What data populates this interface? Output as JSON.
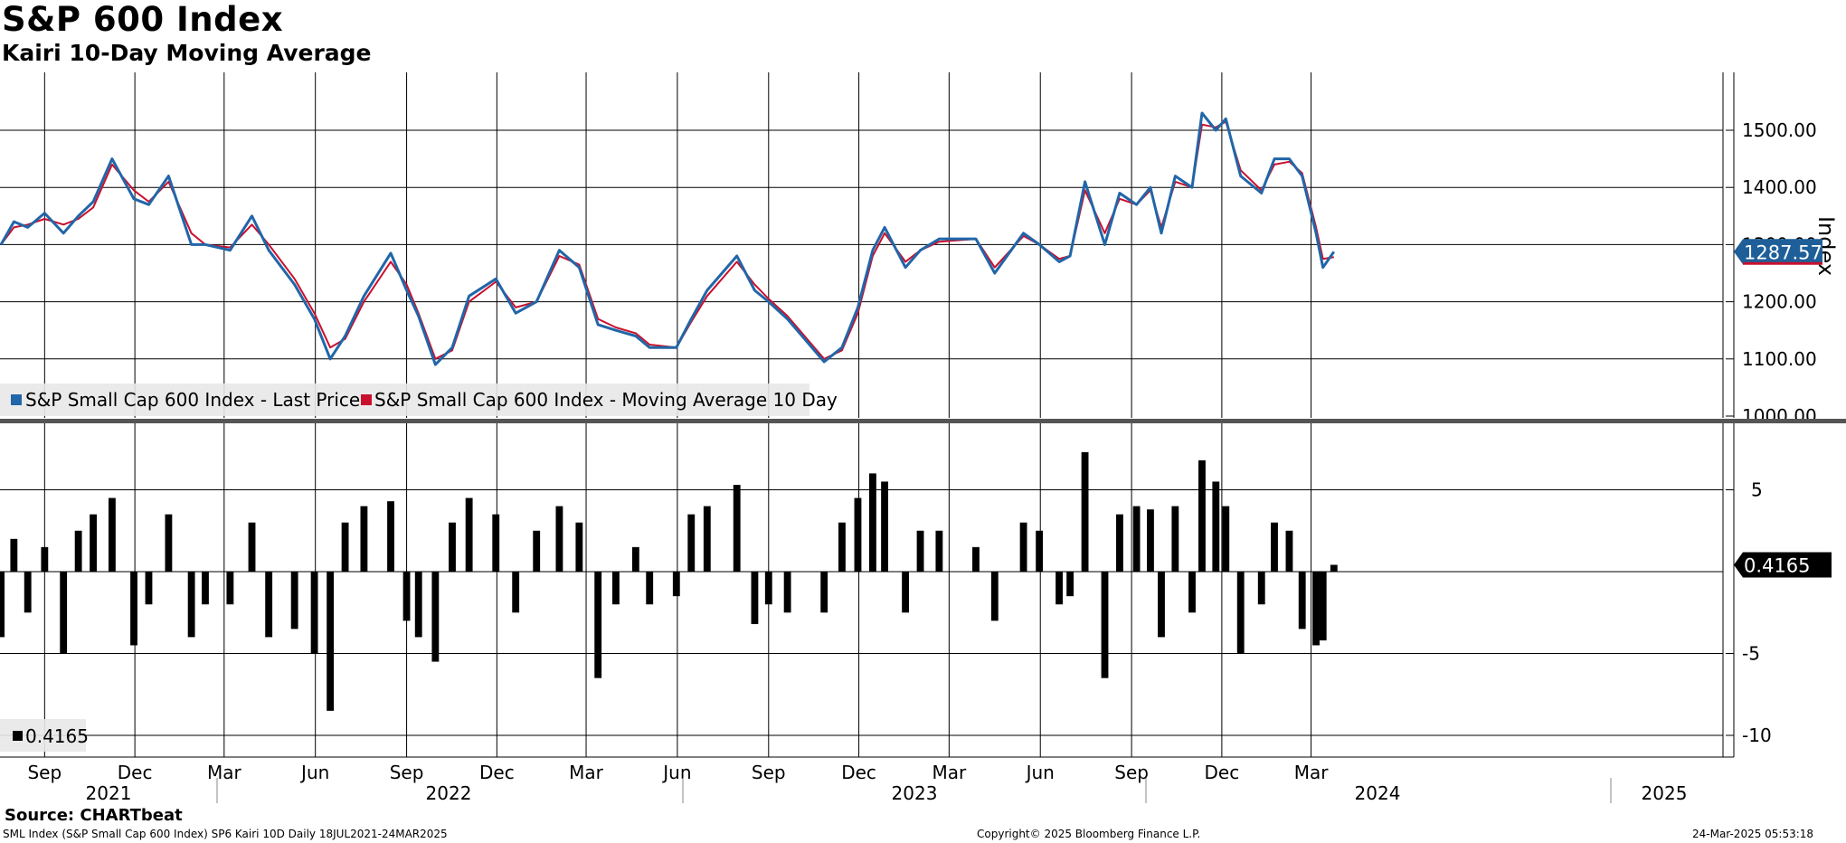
{
  "title": "S&P 600 Index",
  "subtitle": "Kairi 10-Day Moving Average",
  "source": "Source: CHARTbeat",
  "footer": {
    "left": "SML Index (S&P Small Cap 600 Index) SP6 Kairi 10D  Daily 18JUL2021-24MAR2025",
    "center": "Copyright© 2025 Bloomberg Finance L.P.",
    "right": "24-Mar-2025 05:53:18"
  },
  "colors": {
    "price": "#2166a8",
    "moving_average": "#c8102e",
    "kairi_bars": "#000000",
    "grid": "#000000",
    "label_bg": "#1f5f99"
  },
  "chart_data": [
    {
      "type": "line",
      "panel": "top",
      "ylabel": "Index",
      "ylim": [
        1000,
        1580
      ],
      "yticks": [
        "1000.00",
        "1100.00",
        "1200.00",
        "1300.00",
        "1400.00",
        "1500.00"
      ],
      "last_value_label": "1287.57",
      "legend": [
        "S&P Small Cap 600 Index - Last Price",
        "S&P Small Cap 600 Index - Moving Average 10 Day"
      ],
      "legend_position": "bottom-left",
      "x_month_ticks": [
        "Sep",
        "Dec",
        "Mar",
        "Jun",
        "Sep",
        "Dec",
        "Mar",
        "Jun",
        "Sep",
        "Dec",
        "Mar",
        "Jun",
        "Sep",
        "Dec",
        "Mar"
      ],
      "x_year_ticks": [
        "2021",
        "2022",
        "2023",
        "2024",
        "2025"
      ],
      "series": [
        {
          "name": "S&P Small Cap 600 Index - Last Price",
          "x": [
            "2021-07-19",
            "2021-08-01",
            "2021-08-15",
            "2021-09-01",
            "2021-09-20",
            "2021-10-05",
            "2021-10-20",
            "2021-11-08",
            "2021-11-30",
            "2021-12-15",
            "2022-01-04",
            "2022-01-27",
            "2022-02-10",
            "2022-03-07",
            "2022-03-29",
            "2022-04-15",
            "2022-05-11",
            "2022-05-31",
            "2022-06-16",
            "2022-07-01",
            "2022-07-20",
            "2022-08-16",
            "2022-09-01",
            "2022-09-13",
            "2022-09-30",
            "2022-10-17",
            "2022-11-03",
            "2022-11-30",
            "2022-12-20",
            "2023-01-10",
            "2023-02-02",
            "2023-02-22",
            "2023-03-13",
            "2023-03-31",
            "2023-04-20",
            "2023-05-04",
            "2023-05-31",
            "2023-06-15",
            "2023-07-01",
            "2023-07-31",
            "2023-08-18",
            "2023-09-01",
            "2023-09-20",
            "2023-10-27",
            "2023-11-14",
            "2023-11-30",
            "2023-12-15",
            "2023-12-27",
            "2024-01-17",
            "2024-02-01",
            "2024-02-20",
            "2024-03-28",
            "2024-04-16",
            "2024-05-15",
            "2024-05-31",
            "2024-06-20",
            "2024-07-01",
            "2024-07-16",
            "2024-08-05",
            "2024-08-20",
            "2024-09-06",
            "2024-09-20",
            "2024-10-01",
            "2024-10-15",
            "2024-11-01",
            "2024-11-11",
            "2024-11-25",
            "2024-12-05",
            "2024-12-20",
            "2025-01-10",
            "2025-01-23",
            "2025-02-07",
            "2025-02-20",
            "2025-03-06",
            "2025-03-13",
            "2025-03-24"
          ],
          "values": [
            1300,
            1340,
            1330,
            1355,
            1320,
            1350,
            1375,
            1450,
            1380,
            1370,
            1420,
            1300,
            1300,
            1290,
            1350,
            1290,
            1230,
            1170,
            1100,
            1140,
            1210,
            1285,
            1220,
            1175,
            1090,
            1120,
            1210,
            1240,
            1180,
            1200,
            1290,
            1260,
            1160,
            1150,
            1140,
            1120,
            1120,
            1170,
            1220,
            1280,
            1220,
            1200,
            1170,
            1095,
            1120,
            1190,
            1290,
            1330,
            1260,
            1290,
            1310,
            1310,
            1250,
            1320,
            1300,
            1270,
            1280,
            1410,
            1300,
            1390,
            1370,
            1400,
            1320,
            1420,
            1400,
            1530,
            1500,
            1520,
            1420,
            1390,
            1450,
            1450,
            1420,
            1320,
            1260,
            1287.57
          ]
        },
        {
          "name": "S&P Small Cap 600 Index - Moving Average 10 Day",
          "x": [
            "2021-07-19",
            "2021-08-01",
            "2021-08-15",
            "2021-09-01",
            "2021-09-20",
            "2021-10-05",
            "2021-10-20",
            "2021-11-08",
            "2021-11-30",
            "2021-12-15",
            "2022-01-04",
            "2022-01-27",
            "2022-02-10",
            "2022-03-07",
            "2022-03-29",
            "2022-04-15",
            "2022-05-11",
            "2022-05-31",
            "2022-06-16",
            "2022-07-01",
            "2022-07-20",
            "2022-08-16",
            "2022-09-01",
            "2022-09-13",
            "2022-09-30",
            "2022-10-17",
            "2022-11-03",
            "2022-11-30",
            "2022-12-20",
            "2023-01-10",
            "2023-02-02",
            "2023-02-22",
            "2023-03-13",
            "2023-03-31",
            "2023-04-20",
            "2023-05-04",
            "2023-05-31",
            "2023-06-15",
            "2023-07-01",
            "2023-07-31",
            "2023-08-18",
            "2023-09-01",
            "2023-09-20",
            "2023-10-27",
            "2023-11-14",
            "2023-11-30",
            "2023-12-15",
            "2023-12-27",
            "2024-01-17",
            "2024-02-01",
            "2024-02-20",
            "2024-03-28",
            "2024-04-16",
            "2024-05-15",
            "2024-05-31",
            "2024-06-20",
            "2024-07-01",
            "2024-07-16",
            "2024-08-05",
            "2024-08-20",
            "2024-09-06",
            "2024-09-20",
            "2024-10-01",
            "2024-10-15",
            "2024-11-01",
            "2024-11-11",
            "2024-11-25",
            "2024-12-05",
            "2024-12-20",
            "2025-01-10",
            "2025-01-23",
            "2025-02-07",
            "2025-02-20",
            "2025-03-06",
            "2025-03-13",
            "2025-03-24"
          ],
          "values": [
            1300,
            1330,
            1335,
            1345,
            1335,
            1345,
            1365,
            1440,
            1395,
            1375,
            1410,
            1320,
            1300,
            1295,
            1335,
            1300,
            1240,
            1180,
            1120,
            1135,
            1200,
            1270,
            1230,
            1180,
            1100,
            1115,
            1200,
            1235,
            1190,
            1200,
            1280,
            1265,
            1170,
            1155,
            1145,
            1125,
            1120,
            1165,
            1210,
            1270,
            1230,
            1205,
            1175,
            1100,
            1115,
            1180,
            1280,
            1320,
            1270,
            1290,
            1305,
            1310,
            1260,
            1315,
            1300,
            1275,
            1280,
            1395,
            1320,
            1380,
            1370,
            1395,
            1330,
            1410,
            1400,
            1510,
            1505,
            1515,
            1430,
            1395,
            1440,
            1445,
            1425,
            1330,
            1275,
            1278
          ]
        }
      ]
    },
    {
      "type": "bar",
      "panel": "bottom",
      "ylim": [
        -11,
        9
      ],
      "yticks": [
        "-10",
        "-5",
        "5"
      ],
      "last_value_label": "0.4165",
      "legend": [
        "0.4165"
      ],
      "legend_position": "bottom-left",
      "series": [
        {
          "name": "0.4165",
          "x": [
            "2021-07-19",
            "2021-08-01",
            "2021-08-15",
            "2021-09-01",
            "2021-09-20",
            "2021-10-05",
            "2021-10-20",
            "2021-11-08",
            "2021-11-30",
            "2021-12-15",
            "2022-01-04",
            "2022-01-27",
            "2022-02-10",
            "2022-03-07",
            "2022-03-29",
            "2022-04-15",
            "2022-05-11",
            "2022-05-31",
            "2022-06-16",
            "2022-07-01",
            "2022-07-20",
            "2022-08-16",
            "2022-09-01",
            "2022-09-13",
            "2022-09-30",
            "2022-10-17",
            "2022-11-03",
            "2022-11-30",
            "2022-12-20",
            "2023-01-10",
            "2023-02-02",
            "2023-02-22",
            "2023-03-13",
            "2023-03-31",
            "2023-04-20",
            "2023-05-04",
            "2023-05-31",
            "2023-06-15",
            "2023-07-01",
            "2023-07-31",
            "2023-08-18",
            "2023-09-01",
            "2023-09-20",
            "2023-10-27",
            "2023-11-14",
            "2023-11-30",
            "2023-12-15",
            "2023-12-27",
            "2024-01-17",
            "2024-02-01",
            "2024-02-20",
            "2024-03-28",
            "2024-04-16",
            "2024-05-15",
            "2024-05-31",
            "2024-06-20",
            "2024-07-01",
            "2024-07-16",
            "2024-08-05",
            "2024-08-20",
            "2024-09-06",
            "2024-09-20",
            "2024-10-01",
            "2024-10-15",
            "2024-11-01",
            "2024-11-11",
            "2024-11-25",
            "2024-12-05",
            "2024-12-20",
            "2025-01-10",
            "2025-01-23",
            "2025-02-07",
            "2025-02-20",
            "2025-03-06",
            "2025-03-13",
            "2025-03-24"
          ],
          "values": [
            -4,
            2,
            -2.5,
            1.5,
            -5,
            2.5,
            3.5,
            4.5,
            -4.5,
            -2,
            3.5,
            -4,
            -2,
            -2,
            3,
            -4,
            -3.5,
            -5,
            -8.5,
            3,
            4,
            4.3,
            -3,
            -4,
            -5.5,
            3,
            4.5,
            3.5,
            -2.5,
            2.5,
            4,
            3,
            -6.5,
            -2,
            1.5,
            -2,
            -1.5,
            3.5,
            4,
            5.3,
            -3.2,
            -2,
            -2.5,
            -2.5,
            3,
            4.5,
            6,
            5.5,
            -2.5,
            2.5,
            2.5,
            1.5,
            -3,
            3,
            2.5,
            -2,
            -1.5,
            7.3,
            -6.5,
            3.5,
            4,
            3.8,
            -4,
            4,
            -2.5,
            6.8,
            5.5,
            4,
            -5,
            -2,
            3,
            2.5,
            -3.5,
            -4.5,
            -4.2,
            0.4165
          ]
        }
      ]
    }
  ]
}
